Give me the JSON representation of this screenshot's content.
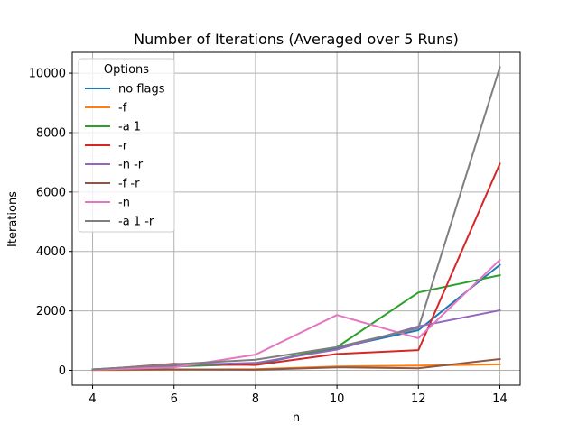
{
  "chart_data": {
    "type": "line",
    "title": "Number of Iterations (Averaged over 5 Runs)",
    "xlabel": "n",
    "ylabel": "Iterations",
    "x": [
      4,
      6,
      8,
      10,
      12,
      14
    ],
    "xlim": [
      3.5,
      14.5
    ],
    "ylim": [
      -500,
      10700
    ],
    "xticks": [
      4,
      6,
      8,
      10,
      12,
      14
    ],
    "yticks": [
      0,
      2000,
      4000,
      6000,
      8000,
      10000
    ],
    "grid": true,
    "legend": {
      "title": "Options",
      "placement": "top-left"
    },
    "series": [
      {
        "name": "no flags",
        "color": "#1f77b4",
        "values": [
          30,
          150,
          200,
          750,
          1350,
          3550
        ]
      },
      {
        "name": "-f",
        "color": "#ff7f0e",
        "values": [
          10,
          20,
          40,
          130,
          160,
          200
        ]
      },
      {
        "name": "-a 1",
        "color": "#2ca02c",
        "values": [
          30,
          130,
          220,
          780,
          2620,
          3200
        ]
      },
      {
        "name": "-r",
        "color": "#d62728",
        "values": [
          20,
          220,
          180,
          550,
          680,
          6950
        ]
      },
      {
        "name": "-n -r",
        "color": "#9467bd",
        "values": [
          30,
          180,
          250,
          700,
          1480,
          2020
        ]
      },
      {
        "name": "-f -r",
        "color": "#8c564b",
        "values": [
          20,
          30,
          20,
          100,
          70,
          380
        ]
      },
      {
        "name": "-n",
        "color": "#e377c2",
        "values": [
          20,
          100,
          530,
          1860,
          1080,
          3720
        ]
      },
      {
        "name": "-a 1 -r",
        "color": "#7f7f7f",
        "values": [
          30,
          200,
          360,
          780,
          1420,
          10200
        ]
      }
    ]
  }
}
